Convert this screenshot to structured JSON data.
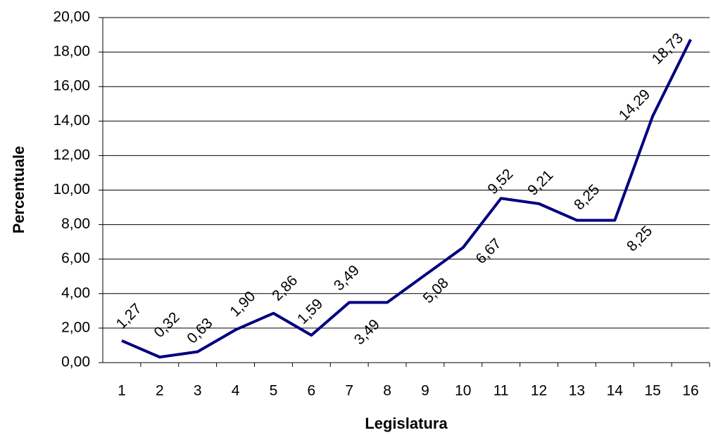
{
  "chart_data": {
    "type": "line",
    "x_label": "Legislatura",
    "y_label": "Percentuale",
    "categories": [
      "1",
      "2",
      "3",
      "4",
      "5",
      "6",
      "7",
      "8",
      "9",
      "10",
      "11",
      "12",
      "13",
      "14",
      "15",
      "16"
    ],
    "series": [
      {
        "color": "#000080",
        "values": [
          1.27,
          0.32,
          0.63,
          1.9,
          2.86,
          1.59,
          3.49,
          3.49,
          5.08,
          6.67,
          9.52,
          9.21,
          8.25,
          8.25,
          14.29,
          18.73
        ],
        "value_labels": [
          "1,27",
          "0,32",
          "0,63",
          "1,90",
          "2,86",
          "1,59",
          "3,49",
          "3,49",
          "5,08",
          "6,67",
          "9,52",
          "9,21",
          "8,25",
          "8,25",
          "14,29",
          "18,73"
        ]
      }
    ],
    "ylim": [
      0,
      20
    ],
    "yticks": [
      {
        "value": 0,
        "label": "0,00"
      },
      {
        "value": 2,
        "label": "2,00"
      },
      {
        "value": 4,
        "label": "4,00"
      },
      {
        "value": 6,
        "label": "6,00"
      },
      {
        "value": 8,
        "label": "8,00"
      },
      {
        "value": 10,
        "label": "10,00"
      },
      {
        "value": 12,
        "label": "12,00"
      },
      {
        "value": 14,
        "label": "14,00"
      },
      {
        "value": 16,
        "label": "16,00"
      },
      {
        "value": 18,
        "label": "18,00"
      },
      {
        "value": 20,
        "label": "20,00"
      }
    ],
    "grid": true
  }
}
